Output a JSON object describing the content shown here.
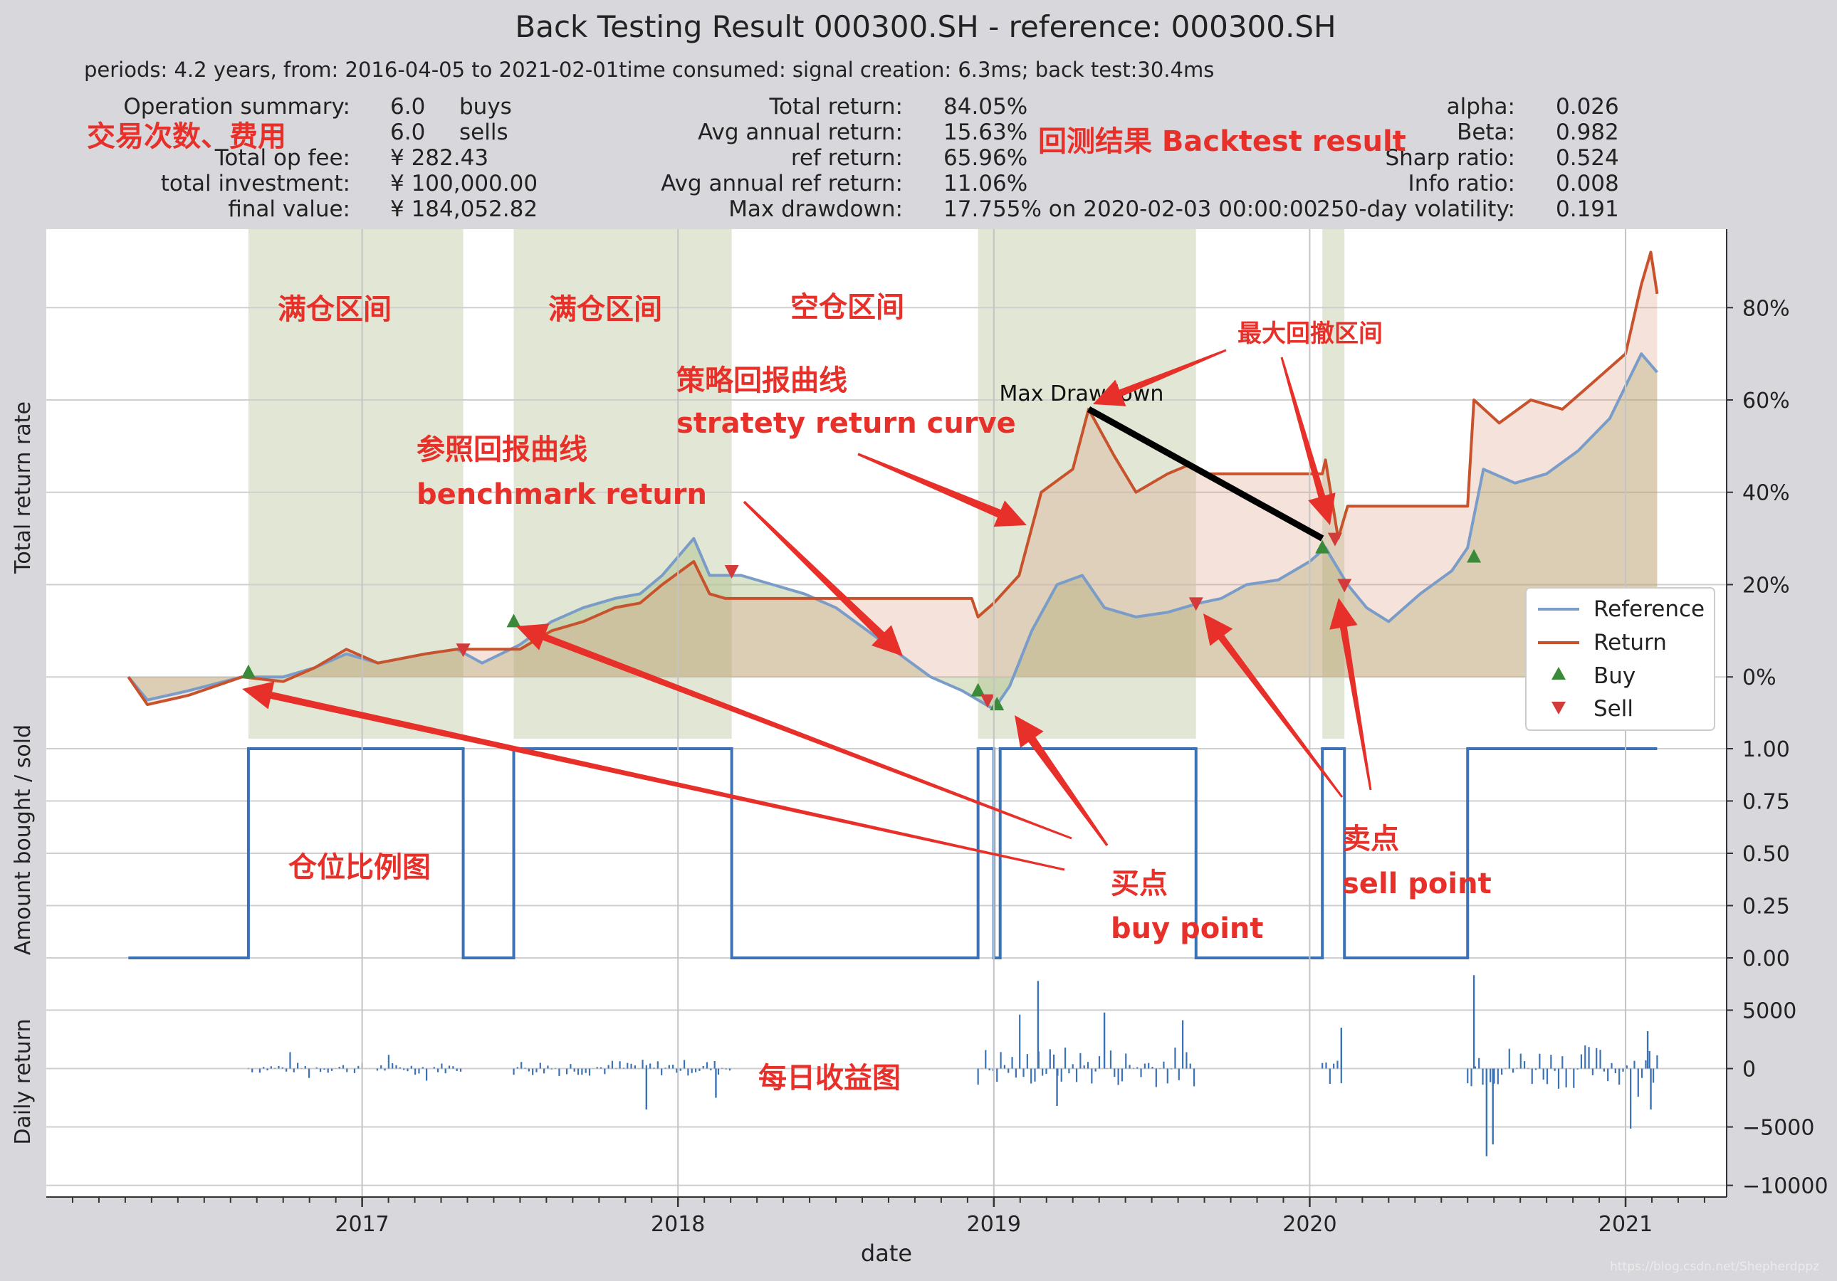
{
  "chart_data": {
    "type": "line",
    "title": "Back Testing Result 000300.SH - reference: 000300.SH",
    "subtitle": "periods: 4.2 years, from: 2016-04-05 to 2021-02-01time consumed:   signal creation: 6.3ms;  back test:30.4ms",
    "summary": {
      "col1": [
        {
          "label": "Operation summary:",
          "value": "6.0",
          "unit": "buys"
        },
        {
          "label": "",
          "value": "6.0",
          "unit": "sells"
        },
        {
          "label": "Total op fee:",
          "value": "¥      282.43",
          "unit": ""
        },
        {
          "label": "total investment:",
          "value": "¥  100,000.00",
          "unit": ""
        },
        {
          "label": "final value:",
          "value": "¥  184,052.82",
          "unit": ""
        }
      ],
      "col2": [
        {
          "label": "Total return:",
          "value": "84.05%"
        },
        {
          "label": "Avg annual return:",
          "value": "15.63%"
        },
        {
          "label": "ref return:",
          "value": "65.96%"
        },
        {
          "label": "Avg annual ref return:",
          "value": "11.06%"
        },
        {
          "label": "Max drawdown:",
          "value": "17.755% on 2020-02-03 00:00:00"
        }
      ],
      "col3": [
        {
          "label": "alpha:",
          "value": "0.026"
        },
        {
          "label": "Beta:",
          "value": "0.982"
        },
        {
          "label": "Sharp ratio:",
          "value": "0.524"
        },
        {
          "label": "Info ratio:",
          "value": "0.008"
        },
        {
          "label": "250-day volatility:",
          "value": "0.191"
        }
      ]
    },
    "x_axis": {
      "label": "date",
      "ticks": [
        "2017",
        "2018",
        "2019",
        "2020",
        "2021"
      ],
      "tick_values": [
        2017.0,
        2018.0,
        2019.0,
        2020.0,
        2021.0
      ],
      "range": [
        2016.0,
        2021.32
      ]
    },
    "panel_return": {
      "ylabel": "Total return rate",
      "yticks": [
        "0%",
        "20%",
        "40%",
        "60%",
        "80%"
      ],
      "ytick_values": [
        0,
        20,
        40,
        60,
        80
      ],
      "ylim": [
        -14,
        97
      ],
      "series": [
        {
          "name": "Reference",
          "color": "#7a9cc8",
          "points": [
            [
              2016.26,
              0
            ],
            [
              2016.32,
              -5
            ],
            [
              2016.45,
              -3
            ],
            [
              2016.62,
              0
            ],
            [
              2016.75,
              0
            ],
            [
              2016.85,
              2
            ],
            [
              2016.95,
              5
            ],
            [
              2017.05,
              3
            ],
            [
              2017.2,
              5
            ],
            [
              2017.3,
              6
            ],
            [
              2017.38,
              3
            ],
            [
              2017.5,
              7
            ],
            [
              2017.6,
              12
            ],
            [
              2017.7,
              15
            ],
            [
              2017.8,
              17
            ],
            [
              2017.88,
              18
            ],
            [
              2017.95,
              22
            ],
            [
              2018.05,
              30
            ],
            [
              2018.1,
              22
            ],
            [
              2018.2,
              22
            ],
            [
              2018.3,
              20
            ],
            [
              2018.4,
              18
            ],
            [
              2018.5,
              15
            ],
            [
              2018.6,
              10
            ],
            [
              2018.7,
              5
            ],
            [
              2018.8,
              0
            ],
            [
              2018.9,
              -3
            ],
            [
              2019.0,
              -7
            ],
            [
              2019.05,
              -2
            ],
            [
              2019.12,
              10
            ],
            [
              2019.2,
              20
            ],
            [
              2019.28,
              22
            ],
            [
              2019.35,
              15
            ],
            [
              2019.45,
              13
            ],
            [
              2019.55,
              14
            ],
            [
              2019.65,
              16
            ],
            [
              2019.72,
              17
            ],
            [
              2019.8,
              20
            ],
            [
              2019.9,
              21
            ],
            [
              2020.0,
              25
            ],
            [
              2020.05,
              28
            ],
            [
              2020.12,
              20
            ],
            [
              2020.18,
              15
            ],
            [
              2020.25,
              12
            ],
            [
              2020.35,
              18
            ],
            [
              2020.45,
              23
            ],
            [
              2020.5,
              28
            ],
            [
              2020.55,
              45
            ],
            [
              2020.65,
              42
            ],
            [
              2020.75,
              44
            ],
            [
              2020.85,
              49
            ],
            [
              2020.95,
              56
            ],
            [
              2021.05,
              70
            ],
            [
              2021.1,
              66
            ]
          ]
        },
        {
          "name": "Return",
          "color": "#c8522c",
          "points": [
            [
              2016.26,
              0
            ],
            [
              2016.32,
              -6
            ],
            [
              2016.45,
              -4
            ],
            [
              2016.62,
              0
            ],
            [
              2016.75,
              -1
            ],
            [
              2016.85,
              2
            ],
            [
              2016.95,
              6
            ],
            [
              2017.05,
              3
            ],
            [
              2017.2,
              5
            ],
            [
              2017.3,
              6
            ],
            [
              2017.38,
              6
            ],
            [
              2017.5,
              6
            ],
            [
              2017.6,
              10
            ],
            [
              2017.7,
              12
            ],
            [
              2017.8,
              15
            ],
            [
              2017.88,
              16
            ],
            [
              2017.95,
              20
            ],
            [
              2018.05,
              25
            ],
            [
              2018.1,
              18
            ],
            [
              2018.15,
              17
            ],
            [
              2018.55,
              17
            ],
            [
              2018.93,
              17
            ],
            [
              2018.95,
              13
            ],
            [
              2019.0,
              16
            ],
            [
              2019.08,
              22
            ],
            [
              2019.15,
              40
            ],
            [
              2019.25,
              45
            ],
            [
              2019.3,
              58
            ],
            [
              2019.38,
              48
            ],
            [
              2019.45,
              40
            ],
            [
              2019.55,
              44
            ],
            [
              2019.62,
              46
            ],
            [
              2019.68,
              44
            ],
            [
              2019.7,
              44
            ],
            [
              2020.04,
              44
            ],
            [
              2020.05,
              47
            ],
            [
              2020.09,
              30
            ],
            [
              2020.12,
              37
            ],
            [
              2020.5,
              37
            ],
            [
              2020.52,
              60
            ],
            [
              2020.6,
              55
            ],
            [
              2020.7,
              60
            ],
            [
              2020.8,
              58
            ],
            [
              2020.9,
              64
            ],
            [
              2021.0,
              70
            ],
            [
              2021.05,
              85
            ],
            [
              2021.08,
              92
            ],
            [
              2021.1,
              83
            ]
          ]
        }
      ],
      "markers": {
        "buy": [
          [
            2016.64,
            1
          ],
          [
            2017.48,
            12
          ],
          [
            2018.95,
            -3
          ],
          [
            2019.01,
            -6
          ],
          [
            2020.04,
            28
          ],
          [
            2020.52,
            26
          ]
        ],
        "sell": [
          [
            2017.32,
            6
          ],
          [
            2018.17,
            23
          ],
          [
            2018.98,
            -5
          ],
          [
            2019.64,
            16
          ],
          [
            2020.11,
            20
          ],
          [
            2020.08,
            30
          ]
        ]
      },
      "hold_intervals": [
        [
          2016.64,
          2017.32
        ],
        [
          2017.48,
          2018.17
        ],
        [
          2018.95,
          2019.64
        ],
        [
          2020.04,
          2020.11
        ]
      ],
      "max_drawdown": {
        "label": "Max Drawdown",
        "from": [
          2019.3,
          58
        ],
        "to": [
          2020.04,
          30
        ]
      },
      "legend": {
        "position": "right",
        "entries": [
          "Reference",
          "Return",
          "Buy",
          "Sell"
        ]
      }
    },
    "panel_position": {
      "ylabel": "Amount bought / sold",
      "yticks": [
        "0.00",
        "0.25",
        "0.50",
        "0.75",
        "1.00"
      ],
      "ytick_values": [
        0,
        0.25,
        0.5,
        0.75,
        1.0
      ],
      "steps": [
        [
          2016.26,
          0
        ],
        [
          2016.64,
          1
        ],
        [
          2017.32,
          0
        ],
        [
          2017.48,
          1
        ],
        [
          2018.17,
          0
        ],
        [
          2018.95,
          1
        ],
        [
          2019.0,
          0
        ],
        [
          2019.02,
          1
        ],
        [
          2019.64,
          0
        ],
        [
          2020.04,
          1
        ],
        [
          2020.11,
          0
        ],
        [
          2020.5,
          1
        ],
        [
          2021.1,
          1
        ]
      ]
    },
    "panel_daily": {
      "ylabel": "Daily return",
      "yticks": [
        "−10000",
        "−5000",
        "0",
        "5000"
      ],
      "ytick_values": [
        -10000,
        -5000,
        0,
        5000
      ],
      "ylim": [
        -11000,
        8500
      ]
    }
  },
  "annotations": {
    "trade_counts": "交易次数、费用",
    "backtest_result": "回测结果 Backtest result",
    "full1": "满仓区间",
    "full2": "满仓区间",
    "empty": "空仓区间",
    "strategy_cn": "策略回报曲线",
    "strategy_en": "stratety return curve",
    "bench_cn": "参照回报曲线",
    "bench_en": "benchmark return",
    "max_dd_cn": "最大回撤区间",
    "position_cn": "仓位比例图",
    "buy_cn": "买点",
    "buy_en": "buy point",
    "sell_cn": "卖点",
    "sell_en": "sell point",
    "daily_cn": "每日收益图"
  },
  "watermark": "https://blog.csdn.net/Shepherdppz",
  "colors": {
    "reference": "#7a9cc8",
    "return": "#c8522c",
    "hold": "#c9d4b0",
    "buy": "#3a8a3a",
    "sell": "#d33a3a",
    "position": "#3a72b5",
    "annotation": "#e8302a"
  }
}
